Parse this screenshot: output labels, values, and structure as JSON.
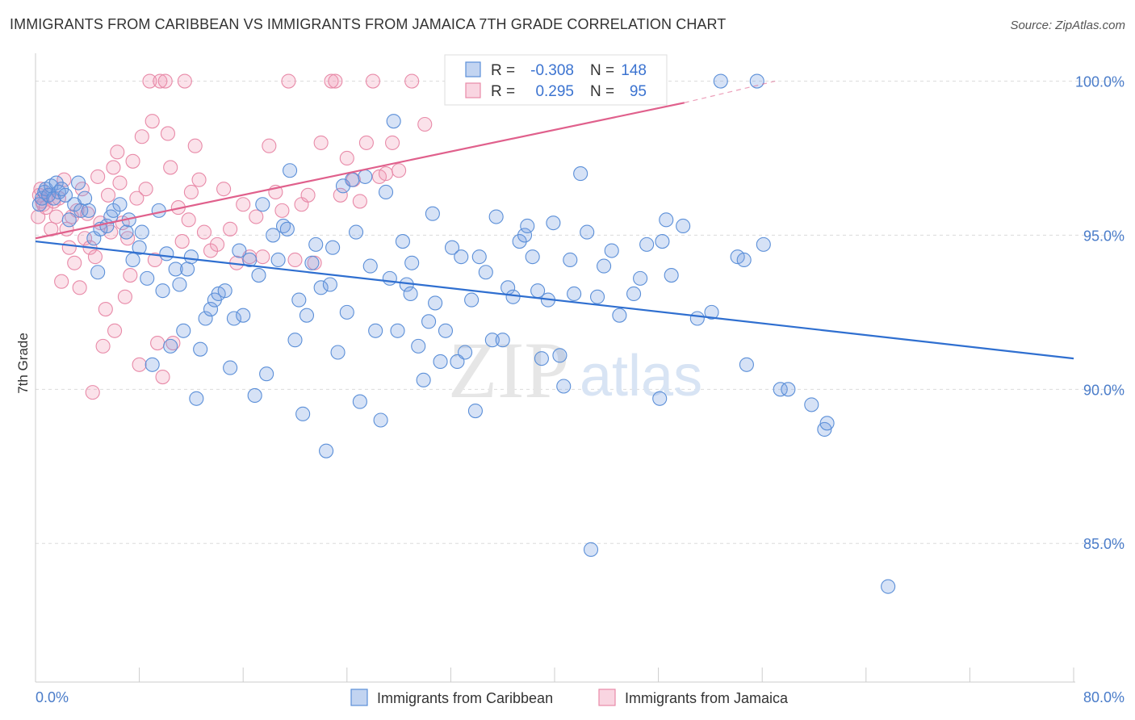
{
  "header": {
    "title": "IMMIGRANTS FROM CARIBBEAN VS IMMIGRANTS FROM JAMAICA 7TH GRADE CORRELATION CHART",
    "source": "Source: ZipAtlas.com"
  },
  "watermark": {
    "zip": "ZIP",
    "atlas": "atlas"
  },
  "colors": {
    "blue": "#5b8fd8",
    "blue_fill": "rgba(120,160,225,0.30)",
    "blue_line": "#2f6fd0",
    "pink": "#e88aa8",
    "pink_fill": "rgba(240,150,180,0.28)",
    "pink_line": "#e0608c",
    "tick": "#4a7cc9"
  },
  "legend": {
    "r_label": "R =",
    "n_label": "N =",
    "rows": [
      {
        "r": "-0.308",
        "n": "148",
        "color": "blue"
      },
      {
        "r": "0.295",
        "n": "95",
        "color": "pink"
      }
    ]
  },
  "chart_data": {
    "type": "scatter",
    "title": "IMMIGRANTS FROM CARIBBEAN VS IMMIGRANTS FROM JAMAICA 7TH GRADE CORRELATION CHART",
    "xlabel": "",
    "ylabel": "7th Grade",
    "xlim": [
      0,
      80
    ],
    "ylim": [
      80.5,
      100.8
    ],
    "x_tick_labels": [
      "0.0%",
      "80.0%"
    ],
    "y_ticks": [
      85,
      90,
      95,
      100
    ],
    "y_tick_labels": [
      "85.0%",
      "90.0%",
      "95.0%",
      "100.0%"
    ],
    "grid": "horizontal dashed",
    "legend_position": "top-center",
    "series": [
      {
        "name": "Immigrants from Caribbean",
        "color": "blue",
        "r": -0.308,
        "n": 148,
        "trend": {
          "x0": 0,
          "y0": 94.8,
          "x1": 80,
          "y1": 91.0
        },
        "points": [
          [
            0.3,
            96.0
          ],
          [
            0.5,
            96.2
          ],
          [
            0.7,
            96.4
          ],
          [
            0.8,
            96.5
          ],
          [
            1.0,
            96.3
          ],
          [
            1.2,
            96.6
          ],
          [
            1.4,
            96.2
          ],
          [
            1.6,
            96.7
          ],
          [
            1.8,
            96.4
          ],
          [
            2.0,
            96.5
          ],
          [
            2.3,
            96.3
          ],
          [
            2.6,
            95.5
          ],
          [
            3.0,
            96.0
          ],
          [
            3.3,
            96.7
          ],
          [
            3.5,
            95.8
          ],
          [
            3.8,
            96.2
          ],
          [
            4.1,
            95.8
          ],
          [
            4.5,
            94.9
          ],
          [
            4.8,
            93.8
          ],
          [
            5.0,
            95.2
          ],
          [
            5.5,
            95.3
          ],
          [
            5.8,
            95.6
          ],
          [
            6.0,
            95.8
          ],
          [
            6.5,
            96.0
          ],
          [
            7.0,
            95.1
          ],
          [
            7.2,
            95.5
          ],
          [
            7.5,
            94.2
          ],
          [
            8.0,
            94.6
          ],
          [
            8.2,
            95.1
          ],
          [
            8.6,
            93.6
          ],
          [
            9.0,
            90.8
          ],
          [
            9.5,
            95.8
          ],
          [
            9.8,
            93.2
          ],
          [
            10.1,
            94.4
          ],
          [
            10.4,
            91.4
          ],
          [
            10.8,
            93.9
          ],
          [
            11.1,
            93.4
          ],
          [
            11.4,
            91.9
          ],
          [
            11.7,
            93.9
          ],
          [
            12.0,
            94.3
          ],
          [
            12.4,
            89.7
          ],
          [
            12.7,
            91.3
          ],
          [
            13.1,
            92.3
          ],
          [
            13.5,
            92.6
          ],
          [
            13.8,
            92.9
          ],
          [
            14.1,
            93.1
          ],
          [
            14.6,
            93.2
          ],
          [
            15.0,
            90.7
          ],
          [
            15.3,
            92.3
          ],
          [
            15.7,
            94.5
          ],
          [
            16.0,
            92.4
          ],
          [
            16.5,
            94.2
          ],
          [
            16.9,
            89.8
          ],
          [
            17.2,
            93.7
          ],
          [
            17.5,
            96.0
          ],
          [
            17.8,
            90.5
          ],
          [
            18.3,
            95.0
          ],
          [
            18.7,
            94.2
          ],
          [
            19.1,
            95.3
          ],
          [
            19.4,
            95.2
          ],
          [
            19.6,
            97.1
          ],
          [
            20.0,
            91.6
          ],
          [
            20.3,
            92.9
          ],
          [
            20.6,
            89.2
          ],
          [
            20.9,
            92.4
          ],
          [
            21.3,
            94.1
          ],
          [
            21.6,
            94.7
          ],
          [
            22.0,
            93.3
          ],
          [
            22.4,
            88.0
          ],
          [
            22.7,
            93.4
          ],
          [
            22.9,
            94.6
          ],
          [
            23.3,
            91.2
          ],
          [
            23.7,
            96.6
          ],
          [
            24.0,
            92.5
          ],
          [
            24.4,
            96.8
          ],
          [
            24.7,
            95.1
          ],
          [
            25.0,
            89.6
          ],
          [
            25.4,
            96.9
          ],
          [
            25.8,
            94.0
          ],
          [
            26.2,
            91.9
          ],
          [
            26.6,
            89.0
          ],
          [
            27.0,
            96.4
          ],
          [
            27.3,
            93.6
          ],
          [
            27.6,
            98.7
          ],
          [
            27.9,
            91.9
          ],
          [
            28.3,
            94.8
          ],
          [
            28.6,
            93.4
          ],
          [
            28.9,
            93.1
          ],
          [
            29.0,
            94.1
          ],
          [
            29.5,
            91.4
          ],
          [
            29.9,
            90.3
          ],
          [
            30.3,
            92.2
          ],
          [
            30.6,
            95.7
          ],
          [
            30.8,
            92.8
          ],
          [
            31.2,
            90.9
          ],
          [
            31.6,
            91.9
          ],
          [
            32.1,
            94.6
          ],
          [
            32.5,
            90.9
          ],
          [
            32.8,
            94.3
          ],
          [
            33.1,
            91.2
          ],
          [
            33.6,
            92.9
          ],
          [
            33.9,
            89.3
          ],
          [
            34.2,
            94.3
          ],
          [
            34.7,
            93.8
          ],
          [
            35.2,
            91.6
          ],
          [
            35.5,
            95.6
          ],
          [
            36.0,
            91.6
          ],
          [
            36.4,
            93.3
          ],
          [
            36.8,
            93.0
          ],
          [
            37.3,
            94.8
          ],
          [
            37.7,
            95.0
          ],
          [
            37.9,
            95.3
          ],
          [
            38.3,
            94.3
          ],
          [
            38.7,
            93.2
          ],
          [
            39.0,
            91.0
          ],
          [
            39.5,
            92.9
          ],
          [
            39.9,
            95.4
          ],
          [
            40.4,
            91.1
          ],
          [
            40.7,
            90.1
          ],
          [
            41.2,
            94.2
          ],
          [
            41.5,
            93.1
          ],
          [
            42.0,
            97.0
          ],
          [
            42.5,
            95.1
          ],
          [
            42.8,
            84.8
          ],
          [
            43.3,
            93.0
          ],
          [
            43.8,
            94.0
          ],
          [
            44.4,
            94.5
          ],
          [
            45.0,
            92.4
          ],
          [
            46.1,
            93.1
          ],
          [
            46.6,
            93.6
          ],
          [
            47.1,
            94.7
          ],
          [
            48.1,
            89.7
          ],
          [
            48.3,
            94.8
          ],
          [
            48.6,
            95.5
          ],
          [
            49.0,
            93.7
          ],
          [
            49.9,
            95.3
          ],
          [
            51.0,
            92.3
          ],
          [
            52.1,
            92.5
          ],
          [
            54.1,
            94.3
          ],
          [
            54.6,
            94.2
          ],
          [
            54.8,
            90.8
          ],
          [
            56.1,
            94.7
          ],
          [
            57.4,
            90.0
          ],
          [
            58.0,
            90.0
          ],
          [
            59.8,
            89.5
          ],
          [
            60.8,
            88.7
          ],
          [
            61.0,
            88.9
          ],
          [
            65.7,
            83.6
          ],
          [
            52.8,
            100.0
          ],
          [
            55.6,
            100.0
          ]
        ]
      },
      {
        "name": "Immigrants from Jamaica",
        "color": "pink",
        "r": 0.295,
        "n": 95,
        "trend": {
          "x0": 0,
          "y0": 94.9,
          "x1": 50,
          "y1": 99.3
        },
        "trend_dashed": {
          "x0": 50,
          "y0": 99.3,
          "x1": 57,
          "y1": 100.0
        },
        "points": [
          [
            0.2,
            95.6
          ],
          [
            0.3,
            96.3
          ],
          [
            0.4,
            96.5
          ],
          [
            0.5,
            96.1
          ],
          [
            0.6,
            96.0
          ],
          [
            0.8,
            95.9
          ],
          [
            1.0,
            96.3
          ],
          [
            1.2,
            95.2
          ],
          [
            1.4,
            96.1
          ],
          [
            1.6,
            95.6
          ],
          [
            1.8,
            96.2
          ],
          [
            2.0,
            93.5
          ],
          [
            2.2,
            96.8
          ],
          [
            2.4,
            95.2
          ],
          [
            2.6,
            94.6
          ],
          [
            2.8,
            95.6
          ],
          [
            3.0,
            94.1
          ],
          [
            3.2,
            95.8
          ],
          [
            3.4,
            93.3
          ],
          [
            3.6,
            96.5
          ],
          [
            3.8,
            94.9
          ],
          [
            4.0,
            95.7
          ],
          [
            4.2,
            94.6
          ],
          [
            4.4,
            89.9
          ],
          [
            4.6,
            94.3
          ],
          [
            4.8,
            96.9
          ],
          [
            5.0,
            95.4
          ],
          [
            5.2,
            91.4
          ],
          [
            5.4,
            92.6
          ],
          [
            5.6,
            96.3
          ],
          [
            5.8,
            95.1
          ],
          [
            6.0,
            97.2
          ],
          [
            6.1,
            91.9
          ],
          [
            6.3,
            97.7
          ],
          [
            6.5,
            96.7
          ],
          [
            6.7,
            95.4
          ],
          [
            6.9,
            93.0
          ],
          [
            7.1,
            94.9
          ],
          [
            7.3,
            93.7
          ],
          [
            7.5,
            97.4
          ],
          [
            7.8,
            96.2
          ],
          [
            8.0,
            90.8
          ],
          [
            8.2,
            98.2
          ],
          [
            8.5,
            96.5
          ],
          [
            8.8,
            100.0
          ],
          [
            9.0,
            98.7
          ],
          [
            9.2,
            94.2
          ],
          [
            9.4,
            91.5
          ],
          [
            9.6,
            100.0
          ],
          [
            9.8,
            90.4
          ],
          [
            10.0,
            100.0
          ],
          [
            10.2,
            98.3
          ],
          [
            10.4,
            97.2
          ],
          [
            10.6,
            91.5
          ],
          [
            11.0,
            95.9
          ],
          [
            11.3,
            94.8
          ],
          [
            11.5,
            100.0
          ],
          [
            11.8,
            95.5
          ],
          [
            12.0,
            96.4
          ],
          [
            12.3,
            97.9
          ],
          [
            12.6,
            96.8
          ],
          [
            13.0,
            95.1
          ],
          [
            13.5,
            94.5
          ],
          [
            14.0,
            94.7
          ],
          [
            14.5,
            96.5
          ],
          [
            15.0,
            95.2
          ],
          [
            15.5,
            94.1
          ],
          [
            16.0,
            96.0
          ],
          [
            16.5,
            94.3
          ],
          [
            17.0,
            95.6
          ],
          [
            17.5,
            94.3
          ],
          [
            18.0,
            97.9
          ],
          [
            18.5,
            96.4
          ],
          [
            19.0,
            95.8
          ],
          [
            19.5,
            100.0
          ],
          [
            20.0,
            94.2
          ],
          [
            20.5,
            96.0
          ],
          [
            21.0,
            96.3
          ],
          [
            21.5,
            94.1
          ],
          [
            22.0,
            98.0
          ],
          [
            22.8,
            100.0
          ],
          [
            23.1,
            100.0
          ],
          [
            23.5,
            96.3
          ],
          [
            24.0,
            97.5
          ],
          [
            24.5,
            96.8
          ],
          [
            25.0,
            96.1
          ],
          [
            25.5,
            98.0
          ],
          [
            26.0,
            100.0
          ],
          [
            26.5,
            96.9
          ],
          [
            27.0,
            97.0
          ],
          [
            27.5,
            98.0
          ],
          [
            28.0,
            97.1
          ],
          [
            29.0,
            100.0
          ],
          [
            30.0,
            98.6
          ],
          [
            39.8,
            100.0
          ]
        ]
      }
    ]
  },
  "bottom_legend": [
    {
      "label": "Immigrants from Caribbean",
      "color": "blue"
    },
    {
      "label": "Immigrants from Jamaica",
      "color": "pink"
    }
  ]
}
